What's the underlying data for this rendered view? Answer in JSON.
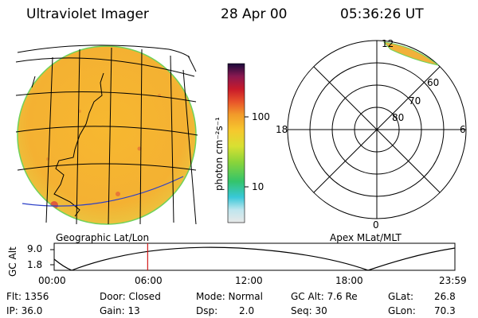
{
  "header": {
    "instrument": "Ultraviolet Imager",
    "date": "28 Apr 00",
    "time": "05:36:26 UT"
  },
  "colorbar": {
    "unit_label": "photon cm⁻²s⁻¹",
    "tick_100": "100",
    "tick_10": "10"
  },
  "geo_panel": {
    "caption": "Geographic Lat/Lon"
  },
  "polar_panel": {
    "caption": "Apex MLat/MLT",
    "mlt_labels": {
      "top": "12",
      "left": "18",
      "right": "6",
      "bottom": "0"
    },
    "lat_labels": {
      "r60": "60",
      "r70": "70",
      "r80": "80"
    }
  },
  "orbit_plot": {
    "ylabel": "GC Alt",
    "ytick_high": "9.0",
    "ytick_low": "1.8",
    "xticks": [
      "00:00",
      "06:00",
      "12:00",
      "18:00",
      "23:59"
    ],
    "marker_time_hours": 5.6
  },
  "status": {
    "flt": "Flt: 1356",
    "ip": "IP: 36.0",
    "door": "Door: Closed",
    "gain": "Gain: 13",
    "mode": "Mode: Normal",
    "dsp_label": "Dsp:",
    "dsp_value": "2.0",
    "gcalt": "GC Alt: 7.6 Re",
    "seq": "Seq: 30",
    "glat_label": "GLat:",
    "glat_value": "26.8",
    "glon_label": "GLon:",
    "glon_value": "70.3"
  },
  "colors": {
    "disk_base": "#f6b431",
    "disk_edge": "#e8c63a",
    "aurora": "#f1b13a",
    "marker": "#d21a1a"
  }
}
